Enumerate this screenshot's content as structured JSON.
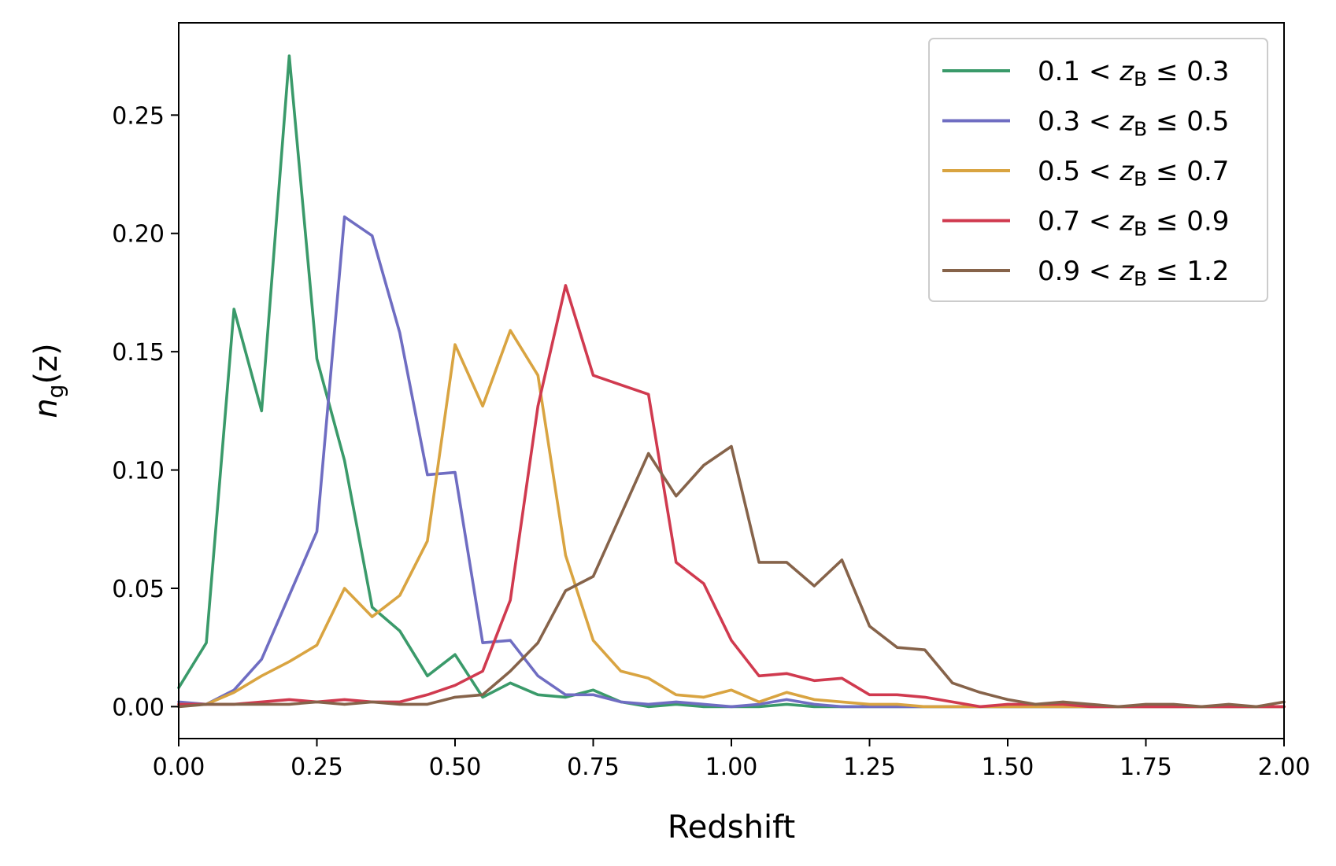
{
  "chart_data": {
    "type": "line",
    "xlabel": "Redshift",
    "ylabel": {
      "main": "n",
      "sub": "g",
      "rest": "(z)"
    },
    "xlim": [
      0,
      2.0
    ],
    "ylim": [
      -0.0135,
      0.289
    ],
    "xticks": [
      0,
      0.25,
      0.5,
      0.75,
      1.0,
      1.25,
      1.5,
      1.75,
      2.0
    ],
    "xtick_labels": [
      "0.00",
      "0.25",
      "0.50",
      "0.75",
      "1.00",
      "1.25",
      "1.50",
      "1.75",
      "2.00"
    ],
    "yticks": [
      0,
      0.05,
      0.1,
      0.15,
      0.2,
      0.25
    ],
    "ytick_labels": [
      "0.00",
      "0.05",
      "0.10",
      "0.15",
      "0.20",
      "0.25"
    ],
    "legend_position": "top-right",
    "grid": false,
    "x": [
      0,
      0.05,
      0.1,
      0.15,
      0.2,
      0.25,
      0.3,
      0.35,
      0.4,
      0.45,
      0.5,
      0.55,
      0.6,
      0.65,
      0.7,
      0.75,
      0.8,
      0.85,
      0.9,
      0.95,
      1.0,
      1.05,
      1.1,
      1.15,
      1.2,
      1.25,
      1.3,
      1.35,
      1.4,
      1.45,
      1.5,
      1.55,
      1.6,
      1.65,
      1.7,
      1.75,
      1.8,
      1.85,
      1.9,
      1.95,
      2.0
    ],
    "series": [
      {
        "label_prefix": "0.1 < ",
        "label_var": "z",
        "label_sub": "B",
        "label_suffix": " ≤ 0.3",
        "color": "#3a9a6a",
        "values": [
          0.008,
          0.027,
          0.168,
          0.125,
          0.275,
          0.147,
          0.104,
          0.042,
          0.032,
          0.013,
          0.022,
          0.004,
          0.01,
          0.005,
          0.004,
          0.007,
          0.002,
          0.0,
          0.001,
          0.0,
          0.0,
          0.0,
          0.001,
          0.0,
          0.0,
          0.0,
          0.0,
          0.0,
          0.0,
          0.0,
          0.0,
          0.0,
          0.0,
          0.0,
          0.0,
          0.0,
          0.0,
          0.0,
          0.0,
          0.0,
          0.0
        ]
      },
      {
        "label_prefix": "0.3 < ",
        "label_var": "z",
        "label_sub": "B",
        "label_suffix": " ≤ 0.5",
        "color": "#6f6dc2",
        "values": [
          0.002,
          0.001,
          0.007,
          0.02,
          0.047,
          0.074,
          0.207,
          0.199,
          0.158,
          0.098,
          0.099,
          0.027,
          0.028,
          0.013,
          0.005,
          0.005,
          0.002,
          0.001,
          0.002,
          0.001,
          0.0,
          0.001,
          0.003,
          0.001,
          0.0,
          0.0,
          0.0,
          0.0,
          0.0,
          0.0,
          0.0,
          0.0,
          0.0,
          0.0,
          0.0,
          0.0,
          0.0,
          0.0,
          0.0,
          0.0,
          0.0
        ]
      },
      {
        "label_prefix": "0.5 < ",
        "label_var": "z",
        "label_sub": "B",
        "label_suffix": " ≤ 0.7",
        "color": "#d9a441",
        "values": [
          0.001,
          0.001,
          0.006,
          0.013,
          0.019,
          0.026,
          0.05,
          0.038,
          0.047,
          0.07,
          0.153,
          0.127,
          0.159,
          0.14,
          0.064,
          0.028,
          0.015,
          0.012,
          0.005,
          0.004,
          0.007,
          0.002,
          0.006,
          0.003,
          0.002,
          0.001,
          0.001,
          0.0,
          0.0,
          0.0,
          0.0,
          0.0,
          0.0,
          0.0,
          0.0,
          0.0,
          0.0,
          0.0,
          0.0,
          0.0,
          0.0
        ]
      },
      {
        "label_prefix": "0.7 < ",
        "label_var": "z",
        "label_sub": "B",
        "label_suffix": " ≤ 0.9",
        "color": "#d03a4f",
        "values": [
          0.001,
          0.001,
          0.001,
          0.002,
          0.003,
          0.002,
          0.003,
          0.002,
          0.002,
          0.005,
          0.009,
          0.015,
          0.045,
          0.127,
          0.178,
          0.14,
          0.136,
          0.132,
          0.061,
          0.052,
          0.028,
          0.013,
          0.014,
          0.011,
          0.012,
          0.005,
          0.005,
          0.004,
          0.002,
          0.0,
          0.001,
          0.001,
          0.001,
          0.0,
          0.0,
          0.0,
          0.0,
          0.0,
          0.0,
          0.0,
          0.0
        ]
      },
      {
        "label_prefix": "0.9 < ",
        "label_var": "z",
        "label_sub": "B",
        "label_suffix": " ≤ 1.2",
        "color": "#86634a",
        "values": [
          0.0,
          0.001,
          0.001,
          0.001,
          0.001,
          0.002,
          0.001,
          0.002,
          0.001,
          0.001,
          0.004,
          0.005,
          0.015,
          0.027,
          0.049,
          0.055,
          0.081,
          0.107,
          0.089,
          0.102,
          0.11,
          0.061,
          0.061,
          0.051,
          0.062,
          0.034,
          0.025,
          0.024,
          0.01,
          0.006,
          0.003,
          0.001,
          0.002,
          0.001,
          0.0,
          0.001,
          0.001,
          0.0,
          0.001,
          0.0,
          0.002
        ]
      }
    ]
  }
}
